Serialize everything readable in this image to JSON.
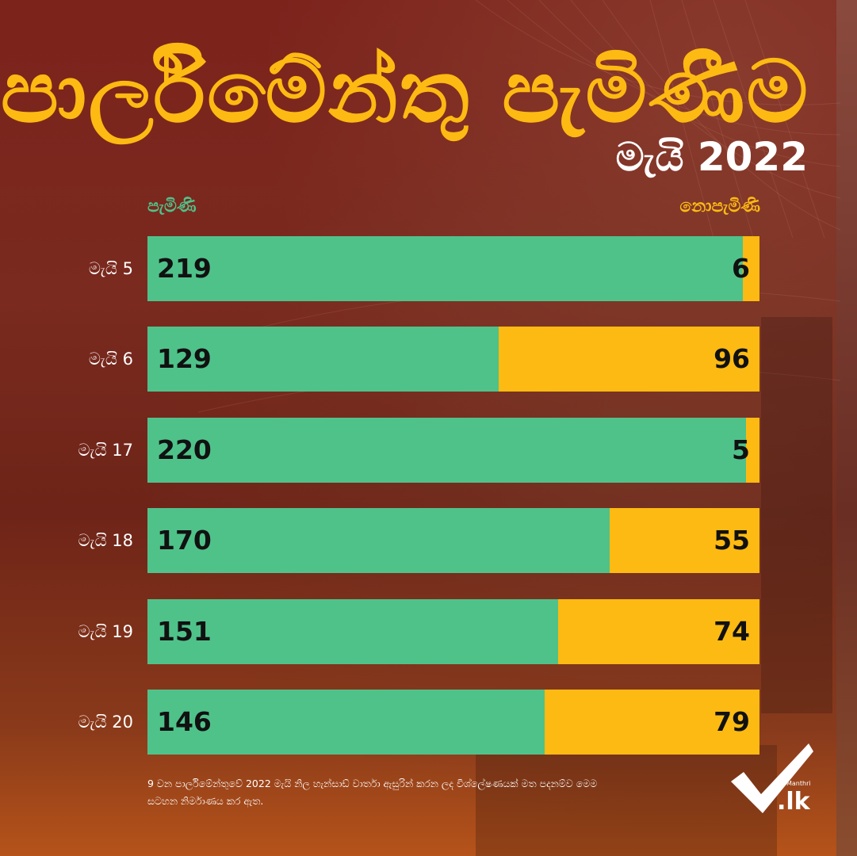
{
  "title": "පාර්ලිමේන්තු පැමිණීම",
  "subtitle": "මැයි 2022",
  "legend": {
    "present": "පැමිණි",
    "absent": "නොපැමිණි"
  },
  "colors": {
    "present": "#4fc28a",
    "absent": "#fdba12",
    "title": "#fdba12"
  },
  "chart_data": {
    "type": "bar",
    "orientation": "horizontal",
    "stacked": true,
    "categories": [
      "මැයි 5",
      "මැයි 6",
      "මැයි 17",
      "මැයි 18",
      "මැයි 19",
      "මැයි 20"
    ],
    "series": [
      {
        "name": "පැමිණි",
        "values": [
          219,
          129,
          220,
          170,
          151,
          146
        ]
      },
      {
        "name": "නොපැමිණි",
        "values": [
          6,
          96,
          5,
          55,
          74,
          79
        ]
      }
    ],
    "legend_placement": "top"
  },
  "footnote": "9 වන පාර්ලිමේන්තුවේ 2022 මැයි නිල හැන්සාඩ් වාර්තා ඇසුරින් කරන ලද විශ්ලේෂණයක් මත පදනම්ව මෙම සටහන නිර්මාණය කර ඇත.",
  "logo": {
    "small_text": "Manthri",
    "text": ".lk"
  }
}
